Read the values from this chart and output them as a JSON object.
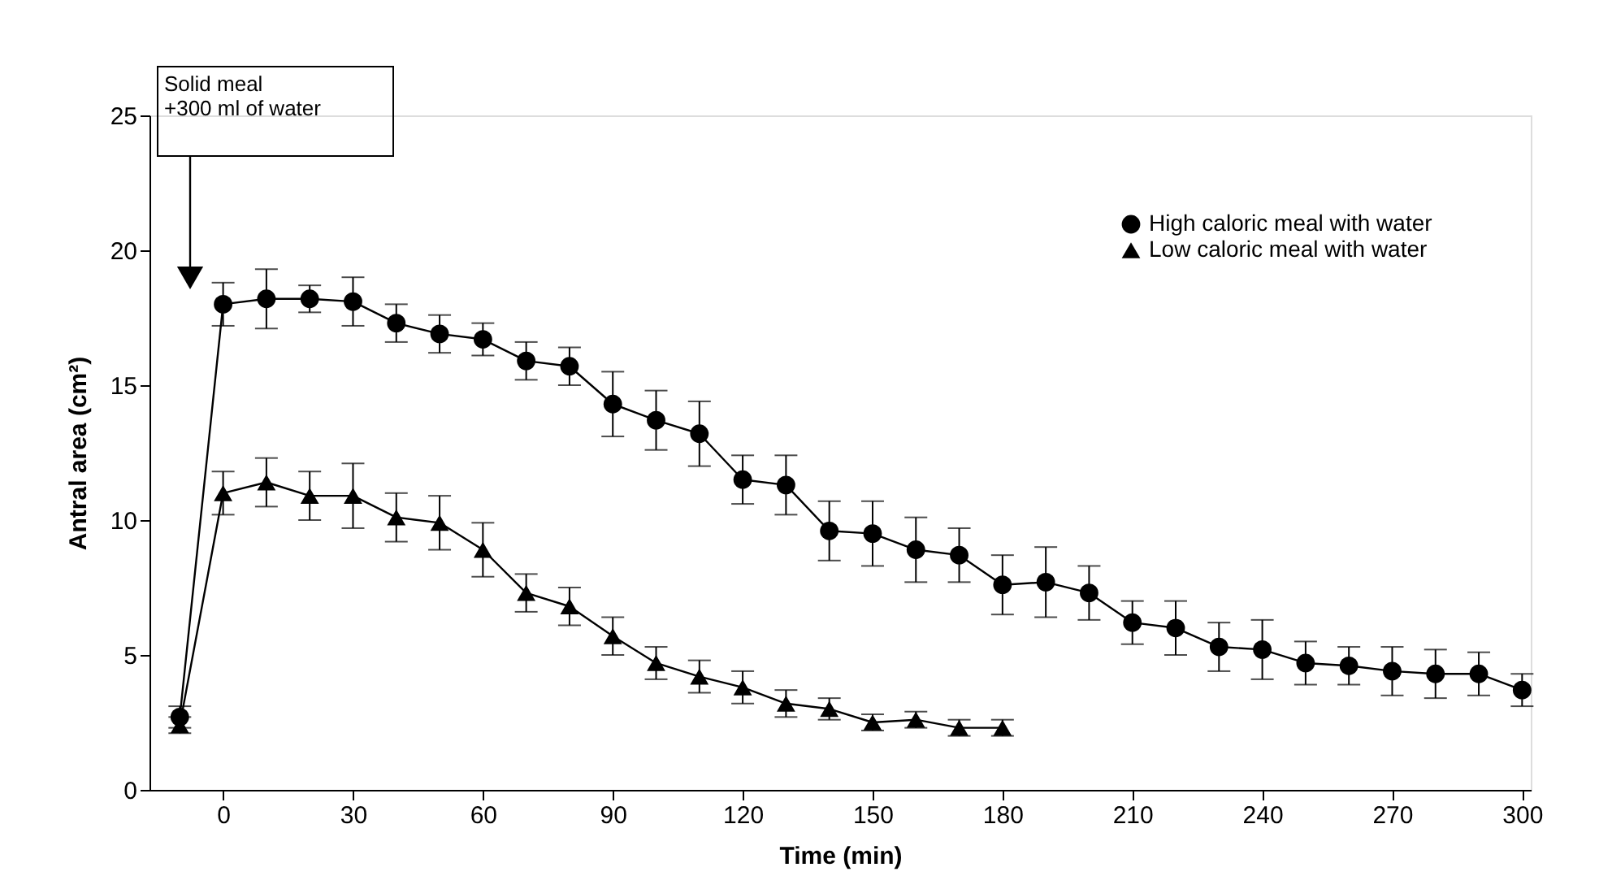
{
  "chart_data": {
    "type": "line",
    "xlabel": "Time (min)",
    "ylabel": "Antral area (cm²)",
    "xlim": [
      -17,
      302
    ],
    "xticks": [
      0,
      30,
      60,
      90,
      120,
      150,
      180,
      210,
      240,
      270,
      300
    ],
    "ylim": [
      0,
      25
    ],
    "yticks": [
      0,
      5,
      10,
      15,
      20,
      25
    ],
    "grid": false,
    "legend": "top right",
    "line_style": "solid",
    "annotations": [
      "Solid meal\n+300 ml of water"
    ],
    "series": [
      {
        "name": "High caloric meal with water",
        "color": "#000000",
        "marker": "circle",
        "x": [
          -10,
          0,
          10,
          20,
          30,
          40,
          50,
          60,
          70,
          80,
          90,
          100,
          110,
          120,
          130,
          140,
          150,
          160,
          170,
          180,
          190,
          200,
          210,
          220,
          230,
          240,
          250,
          260,
          270,
          280,
          290,
          300
        ],
        "values": [
          2.7,
          18.0,
          18.2,
          18.2,
          18.1,
          17.3,
          16.9,
          16.7,
          15.9,
          15.7,
          14.3,
          13.7,
          13.2,
          11.5,
          11.3,
          9.6,
          9.5,
          8.9,
          8.7,
          7.6,
          7.7,
          7.3,
          6.2,
          6.0,
          5.3,
          5.2,
          4.7,
          4.6,
          4.4,
          4.3,
          4.3,
          3.7
        ],
        "errors": [
          0.4,
          0.8,
          1.1,
          0.5,
          0.9,
          0.7,
          0.7,
          0.6,
          0.7,
          0.7,
          1.2,
          1.1,
          1.2,
          0.9,
          1.1,
          1.1,
          1.2,
          1.2,
          1.0,
          1.1,
          1.3,
          1.0,
          0.8,
          1.0,
          0.9,
          1.1,
          0.8,
          0.7,
          0.9,
          0.9,
          0.8,
          0.6
        ]
      },
      {
        "name": "Low caloric meal with water",
        "color": "#000000",
        "marker": "triangle",
        "x": [
          -10,
          0,
          10,
          20,
          30,
          40,
          50,
          60,
          70,
          80,
          90,
          100,
          110,
          120,
          130,
          140,
          150,
          160,
          170,
          180
        ],
        "values": [
          2.4,
          11.0,
          11.4,
          10.9,
          10.9,
          10.1,
          9.9,
          8.9,
          7.3,
          6.8,
          5.7,
          4.7,
          4.2,
          3.8,
          3.2,
          3.0,
          2.5,
          2.6,
          2.3,
          2.3
        ],
        "errors": [
          0.3,
          0.8,
          0.9,
          0.9,
          1.2,
          0.9,
          1.0,
          1.0,
          0.7,
          0.7,
          0.7,
          0.6,
          0.6,
          0.6,
          0.5,
          0.4,
          0.3,
          0.3,
          0.3,
          0.3
        ]
      }
    ]
  }
}
